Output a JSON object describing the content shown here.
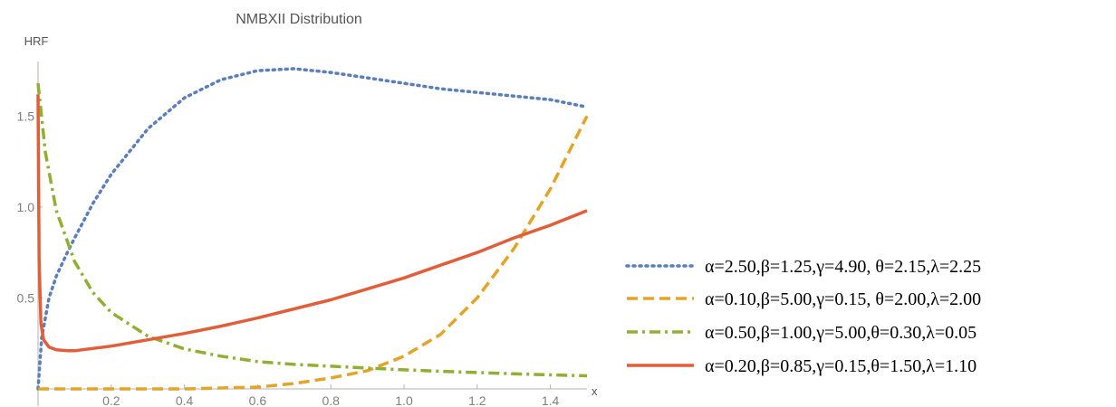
{
  "chart_data": {
    "type": "line",
    "title": "NMBXII Distribution",
    "xlabel": "x",
    "ylabel": "HRF",
    "xlim": [
      0,
      1.5
    ],
    "ylim": [
      0,
      1.8
    ],
    "x_ticks": [
      0.2,
      0.4,
      0.6,
      0.8,
      1.0,
      1.2,
      1.4
    ],
    "x_tick_labels": [
      "0.2",
      "0.4",
      "0.6",
      "0.8",
      "1.0",
      "1.2",
      "1.4"
    ],
    "y_ticks": [
      0.5,
      1.0,
      1.5
    ],
    "y_tick_labels": [
      "0.5",
      "1.0",
      "1.5"
    ],
    "legend_position": "right",
    "grid": false,
    "series": [
      {
        "name": "α=2.50,β=1.25,γ=4.90, θ=2.15,λ=2.25",
        "color": "#5b7fba",
        "style": "dotted",
        "x": [
          0.0,
          0.01,
          0.03,
          0.05,
          0.08,
          0.1,
          0.15,
          0.2,
          0.3,
          0.4,
          0.5,
          0.6,
          0.7,
          0.8,
          0.9,
          1.0,
          1.1,
          1.2,
          1.3,
          1.4,
          1.5
        ],
        "y": [
          0.0,
          0.28,
          0.5,
          0.62,
          0.75,
          0.83,
          1.02,
          1.18,
          1.43,
          1.6,
          1.7,
          1.75,
          1.76,
          1.74,
          1.71,
          1.68,
          1.65,
          1.63,
          1.61,
          1.59,
          1.55
        ]
      },
      {
        "name": "α=0.10,β=5.00,γ=0.15, θ=2.00,λ=2.00",
        "color": "#e3a42a",
        "style": "dashed",
        "x": [
          0.0,
          0.2,
          0.4,
          0.6,
          0.7,
          0.8,
          0.9,
          1.0,
          1.1,
          1.2,
          1.3,
          1.4,
          1.5
        ],
        "y": [
          0.0,
          0.0,
          0.0,
          0.01,
          0.03,
          0.06,
          0.1,
          0.18,
          0.3,
          0.5,
          0.77,
          1.1,
          1.5
        ]
      },
      {
        "name": "α=0.50,β=1.00,γ=5.00,θ=0.30,λ=0.05",
        "color": "#8fb032",
        "style": "dashdot",
        "x": [
          0.0,
          0.02,
          0.05,
          0.1,
          0.15,
          0.2,
          0.3,
          0.4,
          0.5,
          0.6,
          0.7,
          0.8,
          0.9,
          1.0,
          1.1,
          1.2,
          1.3,
          1.4,
          1.5
        ],
        "y": [
          1.68,
          1.3,
          0.98,
          0.7,
          0.53,
          0.42,
          0.29,
          0.22,
          0.18,
          0.15,
          0.135,
          0.125,
          0.115,
          0.105,
          0.097,
          0.09,
          0.083,
          0.077,
          0.072
        ]
      },
      {
        "name": "α=0.20,β=0.85,γ=0.15,θ=1.50,λ=1.10",
        "color": "#e05f3a",
        "style": "solid",
        "x": [
          0.0,
          0.003,
          0.008,
          0.015,
          0.03,
          0.05,
          0.08,
          0.1,
          0.2,
          0.3,
          0.4,
          0.5,
          0.6,
          0.7,
          0.8,
          0.9,
          1.0,
          1.1,
          1.2,
          1.3,
          1.4,
          1.5
        ],
        "y": [
          1.62,
          0.7,
          0.36,
          0.27,
          0.23,
          0.215,
          0.21,
          0.21,
          0.235,
          0.27,
          0.305,
          0.345,
          0.39,
          0.44,
          0.49,
          0.55,
          0.61,
          0.68,
          0.75,
          0.83,
          0.9,
          0.98
        ]
      }
    ]
  }
}
